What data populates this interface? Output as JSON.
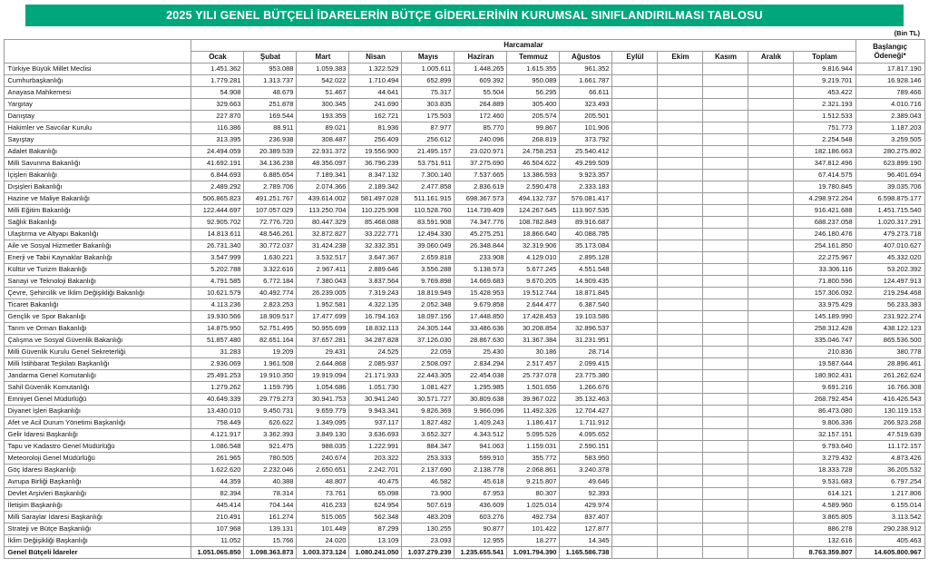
{
  "title": "2025 YILI GENEL BÜTÇELİ İDARELERİN BÜTÇE GİDERLERİNİN KURUMSAL SINIFLANDIRILMASI TABLOSU",
  "unit_note": "(Bin TL)",
  "colors": {
    "title_bg": "#00a77b",
    "title_text": "#ffffff",
    "border": "#9a9a9a"
  },
  "table": {
    "group_header": "Harcamalar",
    "corner_header": "",
    "last_col_header": "Başlangıç Ödeneği*",
    "columns": [
      "Ocak",
      "Şubat",
      "Mart",
      "Nisan",
      "Mayıs",
      "Haziran",
      "Temmuz",
      "Ağustos",
      "Eylül",
      "Ekim",
      "Kasım",
      "Aralık",
      "Toplam"
    ],
    "empty_months": [
      "Eylül",
      "Ekim",
      "Kasım",
      "Aralık"
    ],
    "rows": [
      {
        "name": "Türkiye Büyük Millet Meclisi",
        "months": [
          "1.451.362",
          "953.088",
          "1.059.383",
          "1.322.529",
          "1.005.611",
          "1.448.265",
          "1.615.355",
          "961.352"
        ],
        "toplam": "9.816.944",
        "baslangic": "17.817.190"
      },
      {
        "name": "Cumhurbaşkanlığı",
        "months": [
          "1.779.281",
          "1.313.737",
          "542.022",
          "1.710.494",
          "652.899",
          "609.392",
          "950.089",
          "1.661.787"
        ],
        "toplam": "9.219.701",
        "baslangic": "16.928.146"
      },
      {
        "name": "Anayasa Mahkemesi",
        "months": [
          "54.908",
          "48.679",
          "51.467",
          "44.641",
          "75.317",
          "55.504",
          "56.295",
          "66.611"
        ],
        "toplam": "453.422",
        "baslangic": "789.466"
      },
      {
        "name": "Yargıtay",
        "months": [
          "329.663",
          "251.878",
          "300.345",
          "241.690",
          "303.835",
          "264.889",
          "305.400",
          "323.493"
        ],
        "toplam": "2.321.193",
        "baslangic": "4.010.716"
      },
      {
        "name": "Danıştay",
        "months": [
          "227.870",
          "169.544",
          "193.359",
          "162.721",
          "175.503",
          "172.460",
          "205.574",
          "205.501"
        ],
        "toplam": "1.512.533",
        "baslangic": "2.389.043"
      },
      {
        "name": "Hakimler ve Savcılar Kurulu",
        "months": [
          "116.386",
          "88.911",
          "89.021",
          "81.936",
          "87.977",
          "85.770",
          "99.867",
          "101.906"
        ],
        "toplam": "751.773",
        "baslangic": "1.187.203"
      },
      {
        "name": "Sayıştay",
        "months": [
          "313.395",
          "236.938",
          "308.487",
          "256.409",
          "256.612",
          "240.096",
          "268.819",
          "373.792"
        ],
        "toplam": "2.254.548",
        "baslangic": "3.259.505"
      },
      {
        "name": "Adalet Bakanlığı",
        "months": [
          "24.494.059",
          "20.389.539",
          "22.931.372",
          "19.556.900",
          "21.495.157",
          "23.020.971",
          "24.758.253",
          "25.540.412"
        ],
        "toplam": "182.186.663",
        "baslangic": "280.275.802"
      },
      {
        "name": "Milli Savunma Bakanlığı",
        "months": [
          "41.692.191",
          "34.136.238",
          "48.356.097",
          "36.796.239",
          "53.751.911",
          "37.275.690",
          "46.504.622",
          "49.299.509"
        ],
        "toplam": "347.812.496",
        "baslangic": "623.899.190"
      },
      {
        "name": "İçişleri Bakanlığı",
        "months": [
          "6.844.693",
          "6.885.654",
          "7.189.341",
          "8.347.132",
          "7.300.140",
          "7.537.665",
          "13.386.593",
          "9.923.357"
        ],
        "toplam": "67.414.575",
        "baslangic": "96.401.694"
      },
      {
        "name": "Dışişleri Bakanlığı",
        "months": [
          "2.489.292",
          "2.789.706",
          "2.074.366",
          "2.189.342",
          "2.477.858",
          "2.836.619",
          "2.590.478",
          "2.333.183"
        ],
        "toplam": "19.780.845",
        "baslangic": "39.035.706"
      },
      {
        "name": "Hazine ve Maliye Bakanlığı",
        "months": [
          "506.865.823",
          "491.251.767",
          "439.614.002",
          "581.497.028",
          "511.161.915",
          "698.367.573",
          "494.132.737",
          "576.081.417"
        ],
        "toplam": "4.298.972.264",
        "baslangic": "6.598.875.177"
      },
      {
        "name": "Milli Eğitim Bakanlığı",
        "months": [
          "122.444.697",
          "107.057.029",
          "113.250.704",
          "110.225.908",
          "110.528.760",
          "114.739.409",
          "124.267.645",
          "113.907.535"
        ],
        "toplam": "916.421.688",
        "baslangic": "1.451.715.540"
      },
      {
        "name": "Sağlık Bakanlığı",
        "months": [
          "92.905.702",
          "72.776.720",
          "80.447.329",
          "85.468.088",
          "83.591.908",
          "74.347.776",
          "108.782.849",
          "89.916.687"
        ],
        "toplam": "688.237.058",
        "baslangic": "1.020.317.291"
      },
      {
        "name": "Ulaştırma ve Altyapı Bakanlığı",
        "months": [
          "14.813.611",
          "48.546.261",
          "32.872.827",
          "33.222.771",
          "12.494.330",
          "45.275.251",
          "18.866.640",
          "40.088.785"
        ],
        "toplam": "246.180.476",
        "baslangic": "479.273.718"
      },
      {
        "name": "Aile ve Sosyal Hizmetler Bakanlığı",
        "months": [
          "26.731.340",
          "30.772.037",
          "31.424.238",
          "32.332.351",
          "39.060.049",
          "26.348.844",
          "32.319.906",
          "35.173.084"
        ],
        "toplam": "254.161.850",
        "baslangic": "407.010.627"
      },
      {
        "name": "Enerji ve Tabii Kaynaklar Bakanlığı",
        "months": [
          "3.547.999",
          "1.630.221",
          "3.532.517",
          "3.647.367",
          "2.659.818",
          "233.908",
          "4.129.010",
          "2.895.128"
        ],
        "toplam": "22.275.967",
        "baslangic": "45.332.020"
      },
      {
        "name": "Kültür ve Turizm Bakanlığı",
        "months": [
          "5.202.788",
          "3.322.616",
          "2.967.411",
          "2.889.646",
          "3.556.288",
          "5.138.573",
          "5.677.245",
          "4.551.548"
        ],
        "toplam": "33.306.116",
        "baslangic": "53.202.392"
      },
      {
        "name": "Sanayi ve Teknoloji Bakanlığı",
        "months": [
          "4.791.585",
          "6.772.184",
          "7.380.043",
          "3.837.564",
          "9.769.898",
          "14.669.683",
          "9.670.205",
          "14.909.435"
        ],
        "toplam": "71.800.596",
        "baslangic": "124.497.913"
      },
      {
        "name": "Çevre, Şehircilik ve İklim Değişikliği Bakanlığı",
        "months": [
          "10.621.579",
          "40.492.774",
          "26.239.005",
          "7.319.243",
          "18.819.949",
          "15.428.953",
          "19.512.744",
          "18.871.845"
        ],
        "toplam": "157.306.092",
        "baslangic": "219.294.468"
      },
      {
        "name": "Ticaret Bakanlığı",
        "months": [
          "4.113.236",
          "2.823.253",
          "1.952.581",
          "4.322.135",
          "2.052.348",
          "9.679.858",
          "2.644.477",
          "6.387.540"
        ],
        "toplam": "33.975.429",
        "baslangic": "56.233.383"
      },
      {
        "name": "Gençlik ve Spor Bakanlığı",
        "months": [
          "19.930.566",
          "18.909.517",
          "17.477.699",
          "16.794.163",
          "18.097.156",
          "17.448.850",
          "17.428.453",
          "19.103.586"
        ],
        "toplam": "145.189.990",
        "baslangic": "231.922.274"
      },
      {
        "name": "Tarım ve Orman Bakanlığı",
        "months": [
          "14.875.950",
          "52.751.495",
          "50.955.699",
          "18.832.113",
          "24.305.144",
          "33.486.636",
          "30.208.854",
          "32.896.537"
        ],
        "toplam": "258.312.428",
        "baslangic": "438.122.123"
      },
      {
        "name": "Çalışma ve Sosyal Güvenlik Bakanlığı",
        "months": [
          "51.857.480",
          "82.651.164",
          "37.657.281",
          "34.287.828",
          "37.126.030",
          "28.867.630",
          "31.367.384",
          "31.231.951"
        ],
        "toplam": "335.046.747",
        "baslangic": "865.536.500"
      },
      {
        "name": "Milli Güvenlik Kurulu Genel Sekreterliği",
        "months": [
          "31.283",
          "19.209",
          "29.431",
          "24.525",
          "22.059",
          "25.430",
          "30.186",
          "28.714"
        ],
        "toplam": "210.836",
        "baslangic": "380.778"
      },
      {
        "name": "Milli İstihbarat Teşkilatı Başkanlığı",
        "months": [
          "2.936.069",
          "1.961.508",
          "2.644.868",
          "2.085.937",
          "2.508.097",
          "2.834.294",
          "2.517.457",
          "2.099.415"
        ],
        "toplam": "19.587.644",
        "baslangic": "28.896.461"
      },
      {
        "name": "Jandarma Genel Komutanlığı",
        "months": [
          "25.491.253",
          "19.910.350",
          "19.919.094",
          "21.171.933",
          "22.443.305",
          "22.454.038",
          "25.737.078",
          "23.775.380"
        ],
        "toplam": "180.902.431",
        "baslangic": "261.262.624"
      },
      {
        "name": "Sahil Güvenlik Komutanlığı",
        "months": [
          "1.279.262",
          "1.159.795",
          "1.054.686",
          "1.051.730",
          "1.081.427",
          "1.295.985",
          "1.501.656",
          "1.266.676"
        ],
        "toplam": "9.691.216",
        "baslangic": "16.766.308"
      },
      {
        "name": "Emniyet Genel Müdürlüğü",
        "months": [
          "40.649.339",
          "29.779.273",
          "30.941.753",
          "30.941.240",
          "30.571.727",
          "30.809.638",
          "39.967.022",
          "35.132.463"
        ],
        "toplam": "268.792.454",
        "baslangic": "416.426.543"
      },
      {
        "name": "Diyanet İşleri Başkanlığı",
        "months": [
          "13.430.010",
          "9.450.731",
          "9.659.779",
          "9.943.341",
          "9.826.369",
          "9.966.096",
          "11.492.326",
          "12.704.427"
        ],
        "toplam": "86.473.080",
        "baslangic": "130.119.153"
      },
      {
        "name": "Afet ve Acil Durum Yönetimi Başkanlığı",
        "months": [
          "758.449",
          "626.622",
          "1.349.095",
          "937.117",
          "1.827.482",
          "1.409.243",
          "1.186.417",
          "1.711.912"
        ],
        "toplam": "9.806.336",
        "baslangic": "266.923.268"
      },
      {
        "name": "Gelir İdaresi Başkanlığı",
        "months": [
          "4.121.917",
          "3.362.393",
          "3.849.130",
          "3.636.693",
          "3.652.327",
          "4.343.512",
          "5.095.526",
          "4.095.652"
        ],
        "toplam": "32.157.151",
        "baslangic": "47.519.639"
      },
      {
        "name": "Tapu ve Kadastro Genel Müdürlüğü",
        "months": [
          "1.086.548",
          "921.475",
          "988.035",
          "1.222.991",
          "884.347",
          "941.063",
          "1.159.031",
          "2.590.151"
        ],
        "toplam": "9.793.640",
        "baslangic": "11.172.157"
      },
      {
        "name": "Meteoroloji Genel Müdürlüğü",
        "months": [
          "261.965",
          "780.505",
          "240.674",
          "203.322",
          "253.333",
          "599.910",
          "355.772",
          "583.950"
        ],
        "toplam": "3.279.432",
        "baslangic": "4.873.426"
      },
      {
        "name": "Göç İdaresi Başkanlığı",
        "months": [
          "1.622.620",
          "2.232.046",
          "2.650.651",
          "2.242.701",
          "2.137.690",
          "2.138.778",
          "2.068.861",
          "3.240.378"
        ],
        "toplam": "18.333.728",
        "baslangic": "36.205.532"
      },
      {
        "name": "Avrupa Birliği Başkanlığı",
        "months": [
          "44.359",
          "40.388",
          "48.807",
          "40.475",
          "46.582",
          "45.618",
          "9.215.807",
          "49.646"
        ],
        "toplam": "9.531.683",
        "baslangic": "6.797.254"
      },
      {
        "name": "Devlet Arşivleri Başkanlığı",
        "months": [
          "82.394",
          "78.314",
          "73.761",
          "65.098",
          "73.900",
          "67.953",
          "80.307",
          "92.393"
        ],
        "toplam": "614.121",
        "baslangic": "1.217.806"
      },
      {
        "name": "İletişim Başkanlığı",
        "months": [
          "445.414",
          "704.144",
          "416.233",
          "624.954",
          "507.619",
          "436.609",
          "1.025.014",
          "429.974"
        ],
        "toplam": "4.589.960",
        "baslangic": "6.155.014"
      },
      {
        "name": "Milli Saraylar İdaresi Başkanlığı",
        "months": [
          "210.491",
          "161.274",
          "515.065",
          "562.348",
          "483.209",
          "603.276",
          "492.734",
          "837.407"
        ],
        "toplam": "3.865.805",
        "baslangic": "3.113.542"
      },
      {
        "name": "Strateji ve Bütçe Başkanlığı",
        "months": [
          "107.968",
          "139.131",
          "101.449",
          "87.299",
          "130.255",
          "90.877",
          "101.422",
          "127.877"
        ],
        "toplam": "886.278",
        "baslangic": "290.238.912"
      },
      {
        "name": "İklim Değişikliği Başkanlığı",
        "months": [
          "11.052",
          "15.766",
          "24.020",
          "13.109",
          "23.093",
          "12.955",
          "18.277",
          "14.345"
        ],
        "toplam": "132.616",
        "baslangic": "405.463"
      },
      {
        "name": "Genel Bütçeli İdareler",
        "bold": true,
        "months": [
          "1.051.065.850",
          "1.098.363.873",
          "1.003.373.124",
          "1.080.241.050",
          "1.037.279.239",
          "1.235.655.541",
          "1.091.794.390",
          "1.165.586.738"
        ],
        "toplam": "8.763.359.807",
        "baslangic": "14.605.800.967"
      }
    ]
  }
}
